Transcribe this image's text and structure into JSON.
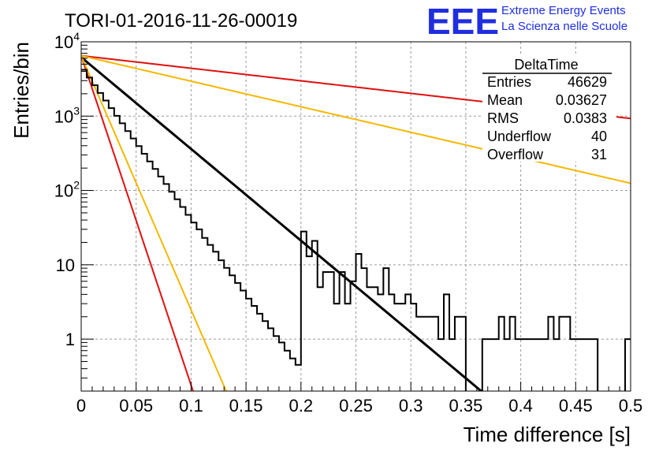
{
  "header": {
    "run_title": "TORI-01-2016-11-26-00019",
    "logo_text": "EEE",
    "logo_line1": "Extreme Energy Events",
    "logo_line2": "La Scienza nelle Scuole",
    "logo_color": "#1f2ee0"
  },
  "chart_data": {
    "type": "line",
    "title": "TORI-01-2016-11-26-00019",
    "xlabel": "Time difference [s]",
    "ylabel": "Entries/bin",
    "xlim": [
      0,
      0.5
    ],
    "ylim": [
      0.2,
      10000
    ],
    "y_scale": "log",
    "grid": true,
    "x_ticks": [
      {
        "v": 0,
        "label": "0"
      },
      {
        "v": 0.05,
        "label": "0.05"
      },
      {
        "v": 0.1,
        "label": "0.1"
      },
      {
        "v": 0.15,
        "label": "0.15"
      },
      {
        "v": 0.2,
        "label": "0.2"
      },
      {
        "v": 0.25,
        "label": "0.25"
      },
      {
        "v": 0.3,
        "label": "0.3"
      },
      {
        "v": 0.35,
        "label": "0.35"
      },
      {
        "v": 0.4,
        "label": "0.4"
      },
      {
        "v": 0.45,
        "label": "0.45"
      },
      {
        "v": 0.5,
        "label": "0.5"
      }
    ],
    "y_ticks": [
      {
        "v": 1,
        "base": "1",
        "exp": ""
      },
      {
        "v": 10,
        "base": "10",
        "exp": ""
      },
      {
        "v": 100,
        "base": "10",
        "exp": "2"
      },
      {
        "v": 1000,
        "base": "10",
        "exp": "3"
      },
      {
        "v": 10000,
        "base": "10",
        "exp": "4"
      }
    ],
    "stats_box": {
      "title": "DeltaTime",
      "rows": [
        {
          "label": "Entries",
          "value": "46629"
        },
        {
          "label": "Mean",
          "value": "0.03627"
        },
        {
          "label": "RMS",
          "value": "0.0383"
        },
        {
          "label": "Underflow",
          "value": "40"
        },
        {
          "label": "Overflow",
          "value": "31"
        }
      ]
    },
    "histogram": {
      "color": "#000000",
      "bin_width": 0.005,
      "x_start": 0.0,
      "counts": [
        4200,
        3300,
        2600,
        2050,
        1620,
        1280,
        1010,
        800,
        630,
        500,
        395,
        312,
        246,
        195,
        154,
        122,
        96,
        76,
        60,
        47,
        37,
        30,
        23,
        18.5,
        15,
        11.5,
        9.1,
        7.2,
        5.7,
        4.5,
        3.5,
        2.8,
        2.2,
        1.75,
        1.4,
        1.1,
        0.9,
        0.7,
        0.55,
        0.45,
        28,
        13,
        21,
        5,
        8,
        8,
        3,
        8,
        3,
        6,
        14,
        9,
        5,
        5,
        4,
        9,
        4,
        3,
        3,
        4,
        3,
        2,
        2,
        2,
        2,
        1,
        4,
        1,
        2,
        2,
        0,
        0,
        0,
        1,
        1,
        1,
        2,
        1,
        2,
        1,
        1,
        1,
        1,
        1,
        1,
        2,
        1,
        2,
        2,
        1,
        1,
        1,
        1,
        1,
        0,
        0,
        0,
        0,
        0,
        1
      ]
    },
    "fits": [
      {
        "color": "#000000",
        "A": 6200,
        "tau": 0.0352,
        "x_end": 0.375
      },
      {
        "color": "#e01010",
        "A": 6500,
        "tau": 0.0098,
        "x_end": 0.108
      },
      {
        "color": "#f5b800",
        "A": 6500,
        "tau": 0.0127,
        "x_end": 0.135
      },
      {
        "color": "#e01010",
        "A": 6500,
        "tau": 0.257,
        "x_end": 0.5
      },
      {
        "color": "#f5b800",
        "A": 6500,
        "tau": 0.1265,
        "x_end": 0.5
      }
    ]
  }
}
